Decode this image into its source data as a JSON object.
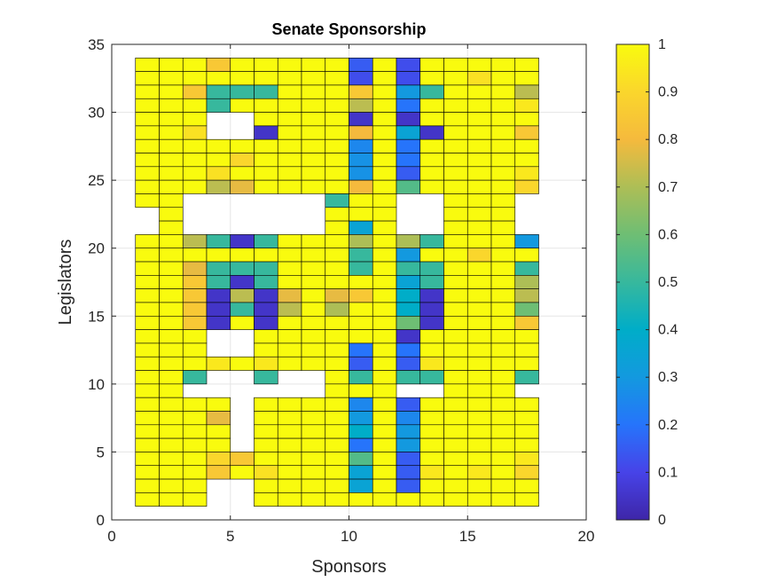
{
  "chart_data": {
    "type": "heatmap",
    "title": "Senate Sponsorship",
    "xlabel": "Sponsors",
    "ylabel": "Legislators",
    "xlim": [
      0,
      20
    ],
    "ylim": [
      0,
      35
    ],
    "x_ticks": [
      0,
      5,
      10,
      15,
      20
    ],
    "y_ticks": [
      0,
      5,
      10,
      15,
      20,
      25,
      30,
      35
    ],
    "grid": true,
    "colormap": "parula",
    "colorbar": {
      "range": [
        0,
        1
      ],
      "ticks": [
        "0",
        "0.1",
        "0.2",
        "0.3",
        "0.4",
        "0.5",
        "0.6",
        "0.7",
        "0.8",
        "0.9",
        "1"
      ]
    },
    "x_edges": [
      1,
      2,
      3,
      4,
      5,
      6,
      7,
      8,
      9,
      10,
      11,
      12,
      13,
      14,
      15,
      16,
      17,
      18
    ],
    "y_edges": [
      1,
      2,
      3,
      4,
      5,
      6,
      7,
      8,
      9,
      10,
      11,
      12,
      13,
      14,
      15,
      16,
      17,
      18,
      19,
      20,
      21,
      22,
      23,
      24,
      25,
      26,
      27,
      28,
      29,
      30,
      31,
      32,
      33,
      34
    ],
    "missing_value": -1,
    "rows_top_to_bottom": [
      [
        1,
        1,
        1,
        0.85,
        1,
        1,
        1,
        1,
        1,
        0.15,
        1,
        0.12,
        1,
        1,
        1,
        1,
        1
      ],
      [
        1,
        1,
        1,
        1,
        1,
        1,
        1,
        1,
        1,
        0.12,
        1,
        0.12,
        1,
        1,
        0.93,
        1,
        1
      ],
      [
        1,
        1,
        0.85,
        0.5,
        0.5,
        0.5,
        1,
        1,
        1,
        0.85,
        1,
        0.3,
        0.5,
        1,
        1,
        1,
        0.72
      ],
      [
        1,
        1,
        1,
        0.5,
        1,
        1,
        1,
        1,
        1,
        0.72,
        1,
        0.2,
        1,
        1,
        1,
        1,
        0.95
      ],
      [
        1,
        1,
        1,
        -1,
        -1,
        1,
        1,
        1,
        1,
        0.05,
        1,
        0.05,
        1,
        1,
        1,
        1,
        1
      ],
      [
        1,
        1,
        0.93,
        -1,
        -1,
        0.05,
        1,
        1,
        1,
        0.8,
        1,
        0.35,
        0.05,
        1,
        1,
        1,
        0.85
      ],
      [
        1,
        1,
        1,
        1,
        1,
        1,
        1,
        1,
        1,
        0.25,
        1,
        0.2,
        1,
        1,
        1,
        1,
        1
      ],
      [
        1,
        1,
        1,
        1,
        0.9,
        1,
        1,
        1,
        1,
        0.28,
        1,
        0.2,
        1,
        1,
        1,
        1,
        1
      ],
      [
        1,
        1,
        1,
        0.93,
        1,
        1,
        1,
        1,
        1,
        0.28,
        1,
        0.15,
        1,
        1,
        1,
        1,
        0.95
      ],
      [
        1,
        1,
        1,
        0.72,
        0.78,
        1,
        1,
        1,
        1,
        0.8,
        1,
        0.55,
        1,
        1,
        1,
        1,
        0.9
      ],
      [
        1,
        1,
        -1,
        -1,
        -1,
        -1,
        -1,
        -1,
        0.5,
        1,
        1,
        -1,
        -1,
        1,
        1,
        1,
        -1
      ],
      [
        -1,
        1,
        -1,
        -1,
        -1,
        -1,
        -1,
        -1,
        1,
        1,
        1,
        -1,
        -1,
        1,
        1,
        1,
        -1
      ],
      [
        -1,
        1,
        -1,
        -1,
        -1,
        -1,
        -1,
        -1,
        1,
        0.35,
        1,
        -1,
        -1,
        1,
        1,
        1,
        -1
      ],
      [
        1,
        1,
        0.72,
        0.5,
        0.05,
        0.5,
        1,
        1,
        1,
        0.7,
        1,
        0.7,
        0.5,
        1,
        1,
        1,
        0.3
      ],
      [
        1,
        1,
        1,
        1,
        1,
        1,
        1,
        1,
        1,
        0.5,
        1,
        0.3,
        1,
        1,
        0.9,
        1,
        1
      ],
      [
        1,
        1,
        0.78,
        0.5,
        0.5,
        0.5,
        1,
        1,
        1,
        0.5,
        1,
        0.5,
        0.5,
        1,
        1,
        1,
        0.5
      ],
      [
        1,
        1,
        0.85,
        0.5,
        0.05,
        0.5,
        1,
        1,
        1,
        1,
        1,
        0.35,
        0.5,
        1,
        1,
        1,
        0.7
      ],
      [
        1,
        1,
        0.85,
        0.05,
        0.72,
        0.05,
        0.78,
        1,
        0.78,
        0.85,
        1,
        0.4,
        0.05,
        1,
        1,
        1,
        0.72
      ],
      [
        1,
        1,
        0.85,
        0.05,
        0.5,
        0.05,
        0.72,
        1,
        0.7,
        1,
        1,
        0.4,
        0.05,
        1,
        1,
        1,
        0.6
      ],
      [
        1,
        1,
        0.85,
        0.05,
        1,
        0.05,
        1,
        1,
        1,
        1,
        1,
        0.6,
        0.05,
        1,
        1,
        1,
        0.85
      ],
      [
        1,
        1,
        1,
        -1,
        -1,
        1,
        1,
        1,
        1,
        1,
        1,
        0.05,
        1,
        1,
        1,
        1,
        1
      ],
      [
        1,
        1,
        1,
        -1,
        -1,
        1,
        1,
        1,
        1,
        0.2,
        1,
        0.2,
        1,
        1,
        1,
        1,
        1
      ],
      [
        1,
        1,
        1,
        0.95,
        1,
        0.95,
        1,
        1,
        1,
        0.15,
        1,
        0.15,
        0.95,
        1,
        1,
        1,
        1
      ],
      [
        1,
        1,
        0.5,
        -1,
        -1,
        0.5,
        -1,
        -1,
        1,
        0.5,
        1,
        0.5,
        0.5,
        1,
        1,
        1,
        0.5
      ],
      [
        1,
        1,
        -1,
        -1,
        -1,
        -1,
        -1,
        -1,
        1,
        1,
        1,
        -1,
        -1,
        1,
        1,
        1,
        -1
      ],
      [
        1,
        1,
        1,
        1,
        -1,
        1,
        1,
        1,
        1,
        0.25,
        1,
        0.15,
        1,
        1,
        1,
        1,
        1
      ],
      [
        1,
        1,
        1,
        0.78,
        -1,
        1,
        1,
        1,
        1,
        0.3,
        1,
        0.25,
        1,
        1,
        1,
        1,
        1
      ],
      [
        1,
        1,
        1,
        1,
        -1,
        1,
        1,
        1,
        1,
        0.4,
        1,
        0.3,
        1,
        1,
        1,
        1,
        1
      ],
      [
        1,
        1,
        1,
        1,
        -1,
        1,
        1,
        1,
        1,
        0.2,
        1,
        0.3,
        1,
        1,
        1,
        1,
        1
      ],
      [
        1,
        1,
        1,
        0.9,
        0.85,
        1,
        1,
        1,
        1,
        0.55,
        1,
        0.15,
        1,
        1,
        1,
        1,
        0.95
      ],
      [
        1,
        1,
        1,
        0.85,
        1,
        0.93,
        1,
        1,
        1,
        0.35,
        1,
        0.15,
        0.95,
        1,
        0.95,
        1,
        0.9
      ],
      [
        1,
        1,
        1,
        -1,
        -1,
        1,
        1,
        1,
        1,
        0.35,
        1,
        0.15,
        1,
        1,
        1,
        1,
        1
      ],
      [
        1,
        1,
        1,
        -1,
        -1,
        1,
        1,
        1,
        1,
        1,
        1,
        1,
        1,
        1,
        1,
        1,
        1
      ]
    ]
  }
}
